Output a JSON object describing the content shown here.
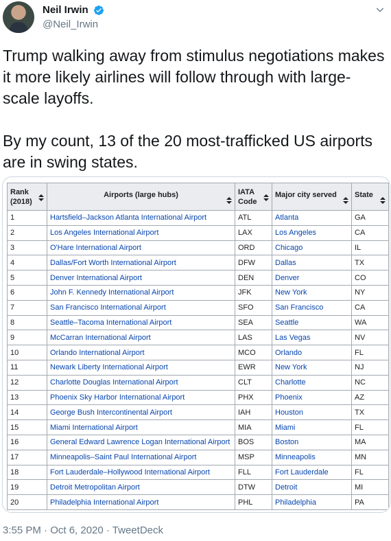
{
  "author": {
    "name": "Neil Irwin",
    "handle": "@Neil_Irwin"
  },
  "tweet": {
    "paragraphs": [
      "Trump walking away from stimulus negotiations makes it more likely airlines will follow through with large-scale layoffs.",
      "By my count, 13 of the 20 most-trafficked US airports are in swing states."
    ],
    "timestamp": "3:55 PM · Oct 6, 2020 · TweetDeck"
  },
  "table": {
    "headers": {
      "rank": "Rank (2018)",
      "airport": "Airports (large hubs)",
      "iata": "IATA Code",
      "city": "Major city served",
      "state": "State"
    },
    "rows": [
      {
        "rank": "1",
        "airport": "Hartsfield–Jackson Atlanta International Airport",
        "iata": "ATL",
        "city": "Atlanta",
        "state": "GA"
      },
      {
        "rank": "2",
        "airport": "Los Angeles International Airport",
        "iata": "LAX",
        "city": "Los Angeles",
        "state": "CA"
      },
      {
        "rank": "3",
        "airport": "O'Hare International Airport",
        "iata": "ORD",
        "city": "Chicago",
        "state": "IL"
      },
      {
        "rank": "4",
        "airport": "Dallas/Fort Worth International Airport",
        "iata": "DFW",
        "city": "Dallas",
        "state": "TX"
      },
      {
        "rank": "5",
        "airport": "Denver International Airport",
        "iata": "DEN",
        "city": "Denver",
        "state": "CO"
      },
      {
        "rank": "6",
        "airport": "John F. Kennedy International Airport",
        "iata": "JFK",
        "city": "New York",
        "state": "NY"
      },
      {
        "rank": "7",
        "airport": "San Francisco International Airport",
        "iata": "SFO",
        "city": "San Francisco",
        "state": "CA"
      },
      {
        "rank": "8",
        "airport": "Seattle–Tacoma International Airport",
        "iata": "SEA",
        "city": "Seattle",
        "state": "WA"
      },
      {
        "rank": "9",
        "airport": "McCarran International Airport",
        "iata": "LAS",
        "city": "Las Vegas",
        "state": "NV"
      },
      {
        "rank": "10",
        "airport": "Orlando International Airport",
        "iata": "MCO",
        "city": "Orlando",
        "state": "FL"
      },
      {
        "rank": "11",
        "airport": "Newark Liberty International Airport",
        "iata": "EWR",
        "city": "New York",
        "state": "NJ"
      },
      {
        "rank": "12",
        "airport": "Charlotte Douglas International Airport",
        "iata": "CLT",
        "city": "Charlotte",
        "state": "NC"
      },
      {
        "rank": "13",
        "airport": "Phoenix Sky Harbor International Airport",
        "iata": "PHX",
        "city": "Phoenix",
        "state": "AZ"
      },
      {
        "rank": "14",
        "airport": "George Bush Intercontinental Airport",
        "iata": "IAH",
        "city": "Houston",
        "state": "TX"
      },
      {
        "rank": "15",
        "airport": "Miami International Airport",
        "iata": "MIA",
        "city": "Miami",
        "state": "FL"
      },
      {
        "rank": "16",
        "airport": "General Edward Lawrence Logan International Airport",
        "iata": "BOS",
        "city": "Boston",
        "state": "MA"
      },
      {
        "rank": "17",
        "airport": "Minneapolis–Saint Paul International Airport",
        "iata": "MSP",
        "city": "Minneapolis",
        "state": "MN"
      },
      {
        "rank": "18",
        "airport": "Fort Lauderdale–Hollywood International Airport",
        "iata": "FLL",
        "city": "Fort Lauderdale",
        "state": "FL"
      },
      {
        "rank": "19",
        "airport": "Detroit Metropolitan Airport",
        "iata": "DTW",
        "city": "Detroit",
        "state": "MI"
      },
      {
        "rank": "20",
        "airport": "Philadelphia International Airport",
        "iata": "PHL",
        "city": "Philadelphia",
        "state": "PA"
      }
    ]
  },
  "colors": {
    "verified": "#1da1f2",
    "link": "#0645ad",
    "meta": "#657786"
  }
}
